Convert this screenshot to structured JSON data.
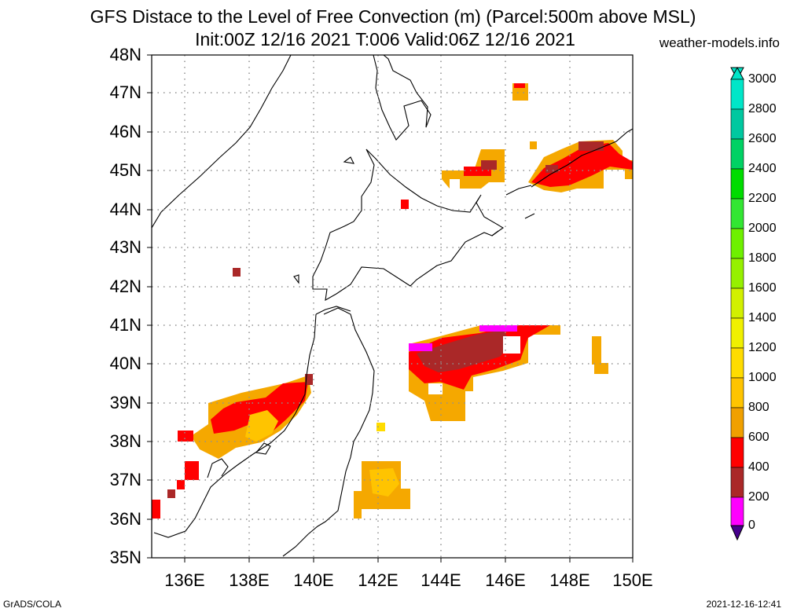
{
  "header": {
    "title_line1": "GFS Distace to the Level of Free Convection (m) (Parcel:500m above MSL)",
    "title_line2": "Init:00Z 12/16 2021 T:006 Valid:06Z 12/16 2021",
    "site": "weather-models.info"
  },
  "footer": {
    "credit": "GrADS/COLA",
    "timestamp": "2021-12-16-12:41"
  },
  "map": {
    "lat_labels": [
      "48N",
      "47N",
      "46N",
      "45N",
      "44N",
      "43N",
      "42N",
      "41N",
      "40N",
      "39N",
      "38N",
      "37N",
      "36N",
      "35N"
    ],
    "lon_labels": [
      "136E",
      "138E",
      "140E",
      "142E",
      "144E",
      "146E",
      "148E",
      "150E"
    ],
    "lat_range": [
      35,
      48
    ],
    "lon_range": [
      135,
      150
    ],
    "grid": "dotted"
  },
  "colorbar": {
    "labels": [
      "3000",
      "2800",
      "2600",
      "2400",
      "2200",
      "2000",
      "1800",
      "1600",
      "1400",
      "1200",
      "1000",
      "800",
      "600",
      "400",
      "200",
      "0"
    ],
    "colors_top_to_bottom": [
      "#00e6c8",
      "#00c8a0",
      "#00d264",
      "#00dc00",
      "#32e632",
      "#6ef000",
      "#96f000",
      "#d2f000",
      "#f0f000",
      "#ffdc00",
      "#ffc400",
      "#f0a000",
      "#ff0000",
      "#aa2828",
      "#ff00ff",
      "#46008c"
    ]
  }
}
